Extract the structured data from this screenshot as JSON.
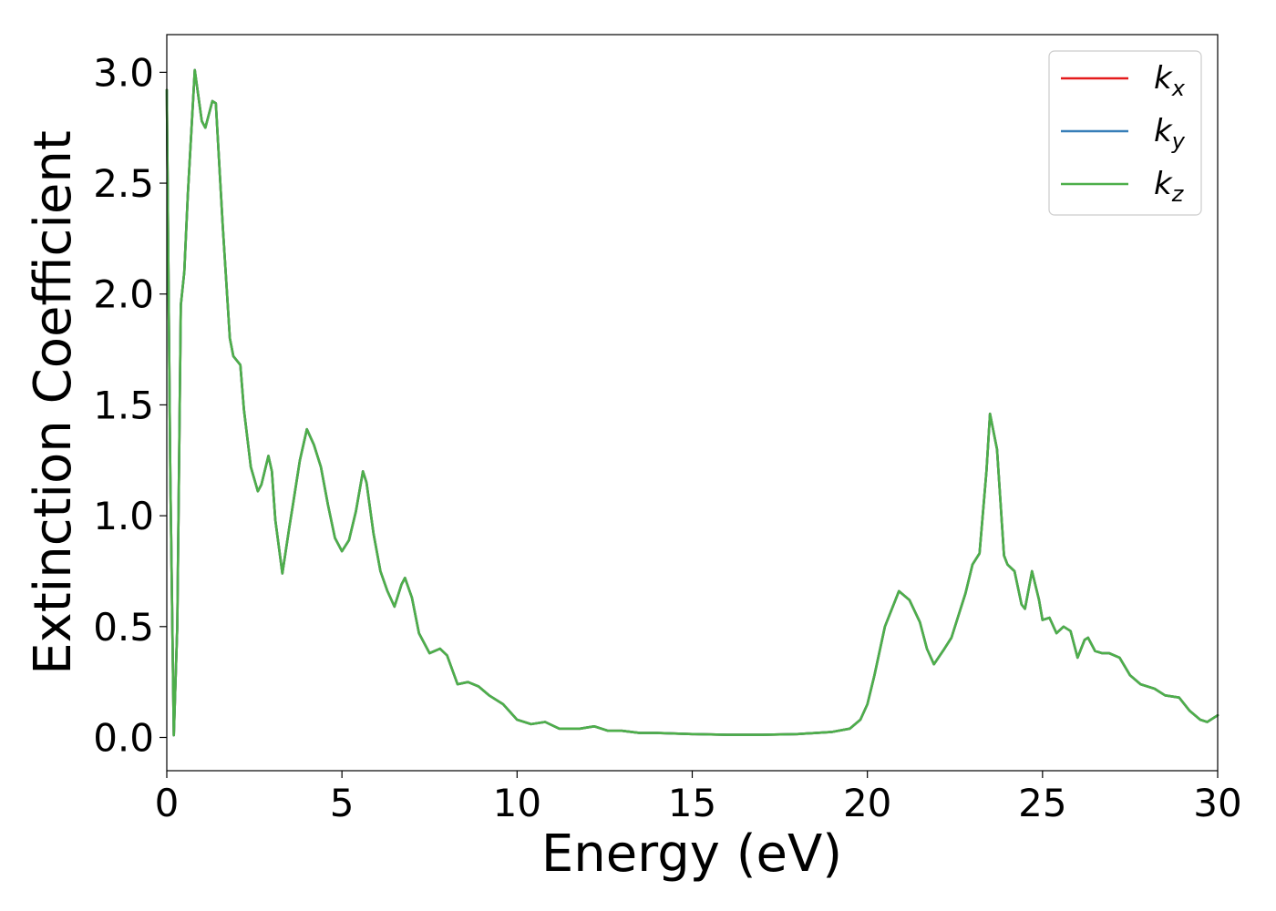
{
  "chart_data": {
    "type": "line",
    "xlabel": "Energy (eV)",
    "ylabel": "Extinction Coefficient",
    "xlim": [
      0,
      30
    ],
    "ylim": [
      -0.15,
      3.17
    ],
    "xticks": [
      0,
      5,
      10,
      15,
      20,
      25,
      30
    ],
    "xtick_labels": [
      "0",
      "5",
      "10",
      "15",
      "20",
      "25",
      "30"
    ],
    "yticks": [
      0.0,
      0.5,
      1.0,
      1.5,
      2.0,
      2.5,
      3.0
    ],
    "ytick_labels": [
      "0.0",
      "0.5",
      "1.0",
      "1.5",
      "2.0",
      "2.5",
      "3.0"
    ],
    "grid": false,
    "legend_position": "top-right",
    "series": [
      {
        "name": "k",
        "subscript": "x",
        "color": "#e41a1c"
      },
      {
        "name": "k",
        "subscript": "y",
        "color": "#377eb8"
      },
      {
        "name": "k",
        "subscript": "z",
        "color": "#4daf4a"
      }
    ],
    "x": [
      0.0,
      0.1,
      0.2,
      0.3,
      0.4,
      0.5,
      0.6,
      0.8,
      1.0,
      1.1,
      1.3,
      1.4,
      1.6,
      1.8,
      1.9,
      2.1,
      2.2,
      2.4,
      2.6,
      2.7,
      2.9,
      3.0,
      3.1,
      3.3,
      3.5,
      3.6,
      3.8,
      4.0,
      4.2,
      4.4,
      4.6,
      4.8,
      5.0,
      5.2,
      5.4,
      5.6,
      5.7,
      5.9,
      6.1,
      6.3,
      6.5,
      6.7,
      6.8,
      7.0,
      7.2,
      7.5,
      7.8,
      8.0,
      8.3,
      8.6,
      8.9,
      9.2,
      9.6,
      10.0,
      10.4,
      10.8,
      11.2,
      11.8,
      12.2,
      12.6,
      13.0,
      13.5,
      14.0,
      15.0,
      16.0,
      17.0,
      18.0,
      19.0,
      19.5,
      19.8,
      20.0,
      20.2,
      20.5,
      20.9,
      21.2,
      21.5,
      21.7,
      21.9,
      22.2,
      22.4,
      22.6,
      22.8,
      23.0,
      23.2,
      23.4,
      23.5,
      23.7,
      23.9,
      24.0,
      24.2,
      24.4,
      24.5,
      24.7,
      24.9,
      25.0,
      25.2,
      25.4,
      25.6,
      25.8,
      26.0,
      26.2,
      26.3,
      26.5,
      26.7,
      26.9,
      27.2,
      27.5,
      27.8,
      28.2,
      28.5,
      28.9,
      29.2,
      29.5,
      29.7,
      30.0
    ],
    "y": [
      2.92,
      1.2,
      0.01,
      0.5,
      1.95,
      2.1,
      2.45,
      3.01,
      2.78,
      2.75,
      2.87,
      2.86,
      2.3,
      1.8,
      1.72,
      1.68,
      1.48,
      1.22,
      1.11,
      1.14,
      1.27,
      1.2,
      0.98,
      0.74,
      0.95,
      1.05,
      1.25,
      1.39,
      1.32,
      1.22,
      1.05,
      0.9,
      0.84,
      0.89,
      1.02,
      1.2,
      1.15,
      0.92,
      0.75,
      0.66,
      0.59,
      0.69,
      0.72,
      0.63,
      0.47,
      0.38,
      0.4,
      0.37,
      0.24,
      0.25,
      0.23,
      0.19,
      0.15,
      0.08,
      0.06,
      0.07,
      0.04,
      0.04,
      0.05,
      0.03,
      0.03,
      0.02,
      0.02,
      0.015,
      0.012,
      0.012,
      0.015,
      0.025,
      0.04,
      0.08,
      0.15,
      0.28,
      0.5,
      0.66,
      0.62,
      0.52,
      0.4,
      0.33,
      0.4,
      0.45,
      0.55,
      0.65,
      0.78,
      0.83,
      1.2,
      1.46,
      1.3,
      0.82,
      0.78,
      0.75,
      0.6,
      0.58,
      0.75,
      0.62,
      0.53,
      0.54,
      0.47,
      0.5,
      0.48,
      0.36,
      0.44,
      0.45,
      0.39,
      0.38,
      0.38,
      0.36,
      0.28,
      0.24,
      0.22,
      0.19,
      0.18,
      0.12,
      0.08,
      0.07,
      0.1
    ]
  }
}
